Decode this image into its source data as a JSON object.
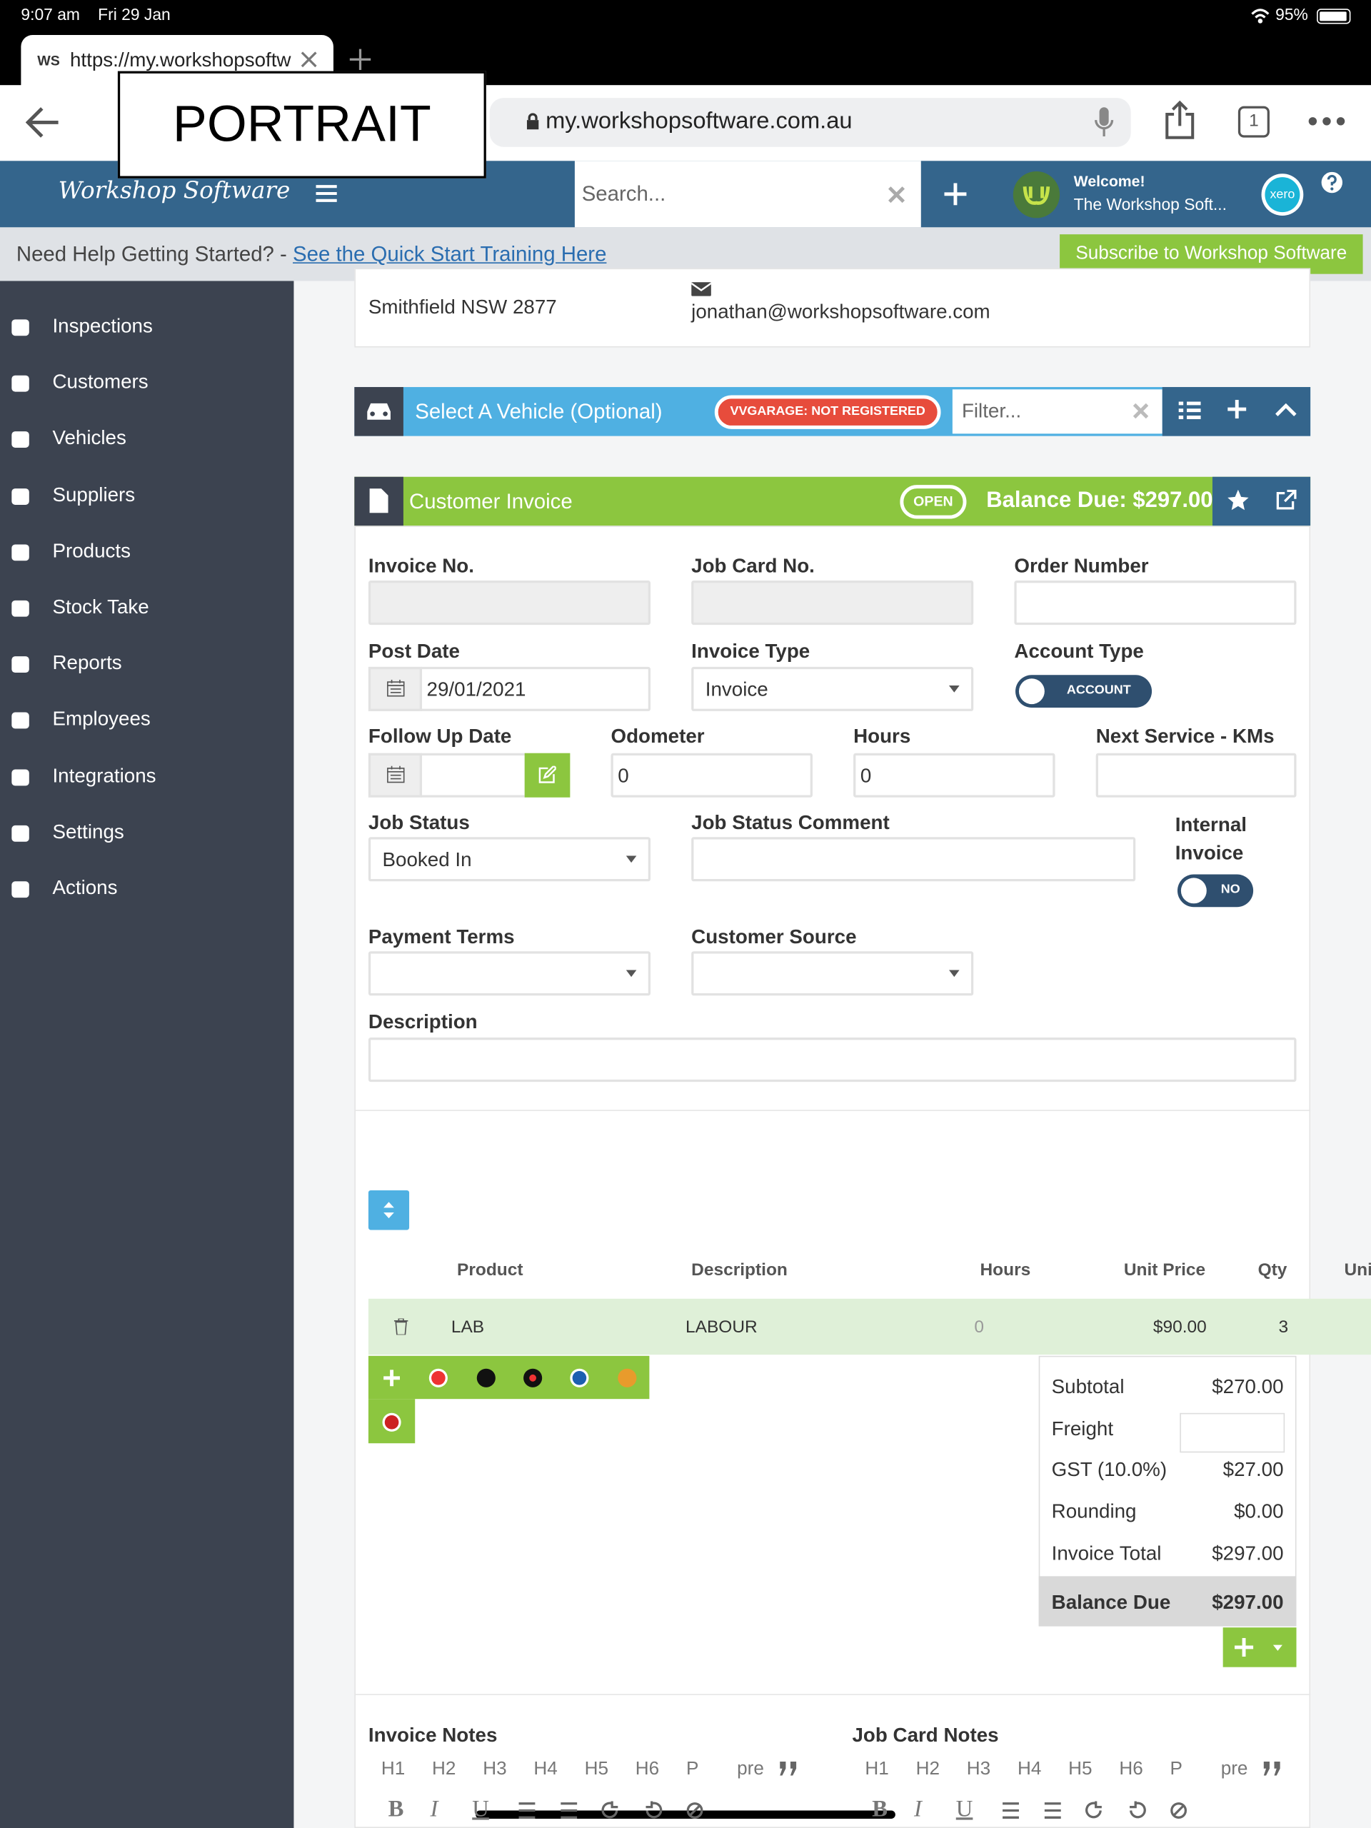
{
  "status_bar": {
    "time": "9:07 am",
    "date": "Fri 29 Jan",
    "battery": "95%"
  },
  "browser": {
    "tab_title": "https://my.workshopsoftw",
    "url": "my.workshopsoftware.com.au",
    "tab_count": "1",
    "favicon": "WS"
  },
  "overlay_label": "PORTRAIT",
  "app_header": {
    "logo": "Workshop Software",
    "search_placeholder": "Search...",
    "welcome": "Welcome!",
    "user": "The Workshop Soft...",
    "xero": "xero"
  },
  "help_bar": {
    "text": "Need Help Getting Started? - ",
    "link": "See the Quick Start Training Here",
    "button": "Subscribe to Workshop Software"
  },
  "sidebar": [
    "Inspections",
    "Customers",
    "Vehicles",
    "Suppliers",
    "Products",
    "Stock Take",
    "Reports",
    "Employees",
    "Integrations",
    "Settings",
    "Actions"
  ],
  "customer": {
    "address": "Smithfield NSW 2877",
    "email": "jonathan@workshopsoftware.com"
  },
  "vehicle_bar": {
    "title": "Select A Vehicle (Optional)",
    "badge": "VVGARAGE: NOT REGISTERED",
    "filter_placeholder": "Filter..."
  },
  "invoice_bar": {
    "title": "Customer Invoice",
    "status": "OPEN",
    "balance": "Balance Due: $297.00"
  },
  "form": {
    "invoice_no_label": "Invoice No.",
    "job_card_no_label": "Job Card No.",
    "order_number_label": "Order Number",
    "post_date_label": "Post Date",
    "post_date": "29/01/2021",
    "invoice_type_label": "Invoice Type",
    "invoice_type": "Invoice",
    "account_type_label": "Account Type",
    "account_type": "ACCOUNT",
    "follow_up_date_label": "Follow Up Date",
    "odometer_label": "Odometer",
    "odometer": "0",
    "hours_label": "Hours",
    "hours": "0",
    "next_service_label": "Next Service - KMs",
    "job_status_label": "Job Status",
    "job_status": "Booked In",
    "job_status_comment_label": "Job Status Comment",
    "internal_invoice_label": "Internal Invoice",
    "internal_invoice": "NO",
    "payment_terms_label": "Payment Terms",
    "customer_source_label": "Customer Source",
    "description_label": "Description"
  },
  "table": {
    "headers": [
      "Product",
      "Description",
      "Hours",
      "Unit Price",
      "Qty",
      "Uni"
    ],
    "rows": [
      [
        "LAB",
        "LABOUR",
        "0",
        "$90.00",
        "3"
      ]
    ]
  },
  "totals": {
    "subtotal_label": "Subtotal",
    "subtotal": "$270.00",
    "freight_label": "Freight",
    "gst_label": "GST (10.0%)",
    "gst": "$27.00",
    "rounding_label": "Rounding",
    "rounding": "$0.00",
    "invoice_total_label": "Invoice Total",
    "invoice_total": "$297.00",
    "balance_due_label": "Balance Due",
    "balance_due": "$297.00"
  },
  "notes": {
    "invoice_notes_label": "Invoice Notes",
    "job_card_notes_label": "Job Card Notes",
    "toolbar": [
      "H1",
      "H2",
      "H3",
      "H4",
      "H5",
      "H6",
      "P",
      "pre"
    ],
    "format": [
      "B",
      "I",
      "U"
    ]
  }
}
